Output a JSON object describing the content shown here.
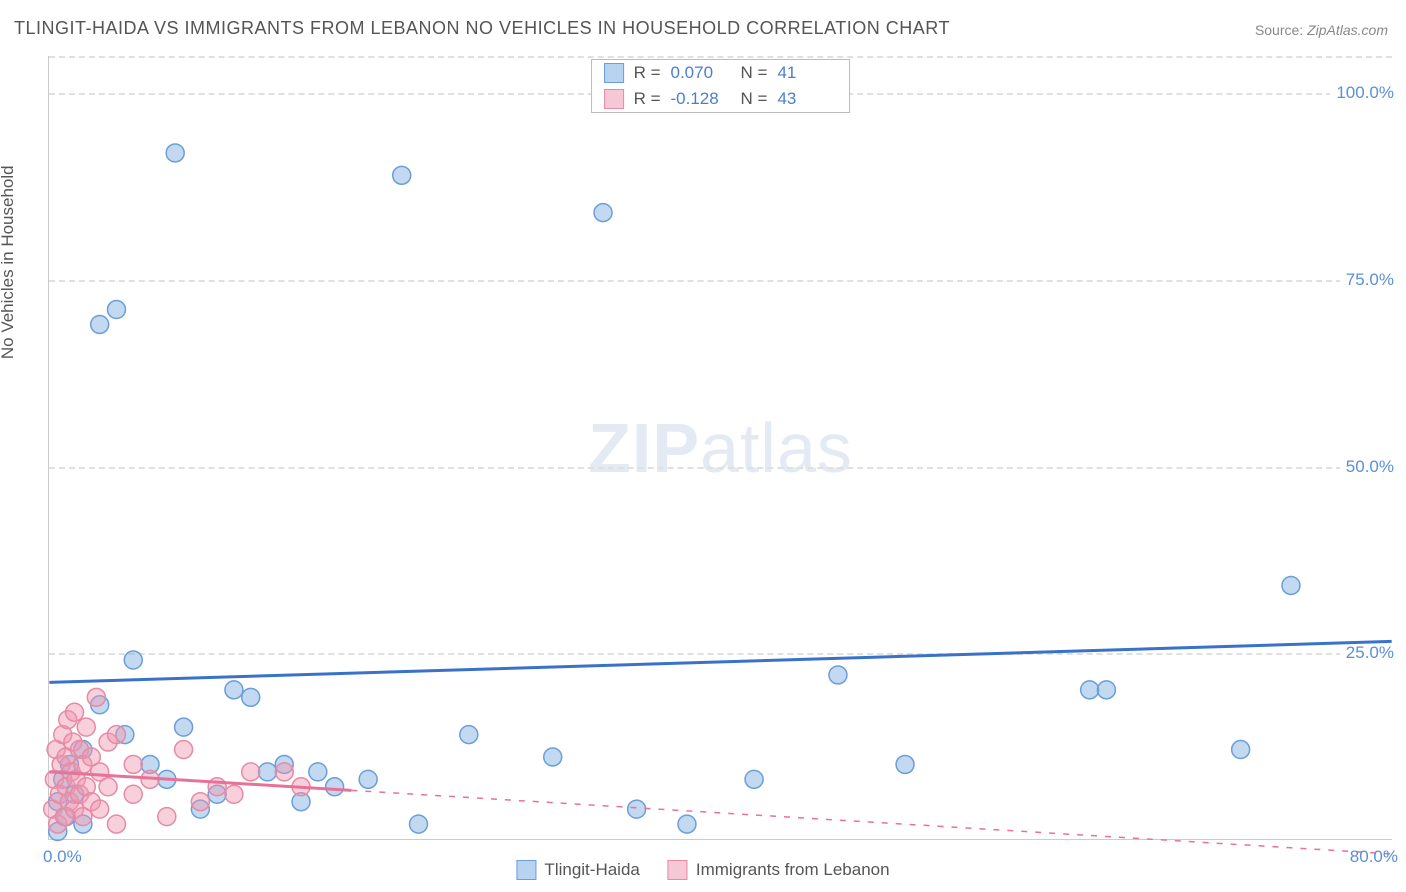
{
  "title": "TLINGIT-HAIDA VS IMMIGRANTS FROM LEBANON NO VEHICLES IN HOUSEHOLD CORRELATION CHART",
  "source_label": "Source:",
  "source_name": "ZipAtlas.com",
  "ylabel": "No Vehicles in Household",
  "watermark_bold": "ZIP",
  "watermark_light": "atlas",
  "chart": {
    "type": "scatter",
    "xlim": [
      0,
      80
    ],
    "ylim": [
      0,
      105
    ],
    "xtick_min": "0.0%",
    "xtick_max": "80.0%",
    "yticks": [
      {
        "v": 25,
        "label": "25.0%"
      },
      {
        "v": 50,
        "label": "50.0%"
      },
      {
        "v": 75,
        "label": "75.0%"
      },
      {
        "v": 100,
        "label": "100.0%"
      }
    ],
    "grid_color": "#e0e0e0",
    "background_color": "#ffffff",
    "axis_color": "#cccccc",
    "tick_color": "#5b8fd6",
    "title_color": "#555555",
    "marker_radius": 9,
    "series": [
      {
        "name": "Tlingit-Haida",
        "fill": "rgba(120,170,225,0.45)",
        "stroke": "#6a9fd8",
        "swatch_fill": "#b7d3f0",
        "swatch_border": "#6a9fd8",
        "R": "0.070",
        "N": "41",
        "trend": {
          "y1": 21,
          "y2": 26.5,
          "x_solid_end": 80,
          "color": "#3a72c9",
          "width": 3
        },
        "points": [
          [
            0.5,
            1
          ],
          [
            0.5,
            5
          ],
          [
            0.8,
            8
          ],
          [
            1,
            3
          ],
          [
            1.2,
            10
          ],
          [
            1.5,
            6
          ],
          [
            2,
            12
          ],
          [
            2,
            2
          ],
          [
            3,
            18
          ],
          [
            3,
            69
          ],
          [
            4,
            71
          ],
          [
            4.5,
            14
          ],
          [
            5,
            24
          ],
          [
            6,
            10
          ],
          [
            7,
            8
          ],
          [
            7.5,
            92
          ],
          [
            8,
            15
          ],
          [
            9,
            4
          ],
          [
            10,
            6
          ],
          [
            11,
            20
          ],
          [
            12,
            19
          ],
          [
            13,
            9
          ],
          [
            14,
            10
          ],
          [
            15,
            5
          ],
          [
            16,
            9
          ],
          [
            17,
            7
          ],
          [
            19,
            8
          ],
          [
            21,
            89
          ],
          [
            22,
            2
          ],
          [
            25,
            14
          ],
          [
            30,
            11
          ],
          [
            33,
            84
          ],
          [
            35,
            4
          ],
          [
            38,
            2
          ],
          [
            42,
            8
          ],
          [
            47,
            22
          ],
          [
            51,
            10
          ],
          [
            62,
            20
          ],
          [
            63,
            20
          ],
          [
            71,
            12
          ],
          [
            74,
            34
          ]
        ]
      },
      {
        "name": "Immigrants from Lebanon",
        "fill": "rgba(240,150,175,0.45)",
        "stroke": "#e68aa5",
        "swatch_fill": "#f6c7d4",
        "swatch_border": "#e68aa5",
        "R": "-0.128",
        "N": "43",
        "trend": {
          "y1": 9,
          "y2": -2,
          "x_solid_end": 18,
          "color": "#e77299",
          "width": 3
        },
        "points": [
          [
            0.2,
            4
          ],
          [
            0.3,
            8
          ],
          [
            0.4,
            12
          ],
          [
            0.5,
            2
          ],
          [
            0.6,
            6
          ],
          [
            0.7,
            10
          ],
          [
            0.8,
            14
          ],
          [
            0.9,
            3
          ],
          [
            1,
            7
          ],
          [
            1,
            11
          ],
          [
            1.1,
            16
          ],
          [
            1.2,
            5
          ],
          [
            1.3,
            9
          ],
          [
            1.4,
            13
          ],
          [
            1.5,
            4
          ],
          [
            1.5,
            17
          ],
          [
            1.6,
            8
          ],
          [
            1.8,
            6
          ],
          [
            1.8,
            12
          ],
          [
            2,
            3
          ],
          [
            2,
            10
          ],
          [
            2.2,
            7
          ],
          [
            2.2,
            15
          ],
          [
            2.5,
            5
          ],
          [
            2.5,
            11
          ],
          [
            2.8,
            19
          ],
          [
            3,
            4
          ],
          [
            3,
            9
          ],
          [
            3.5,
            7
          ],
          [
            3.5,
            13
          ],
          [
            4,
            14
          ],
          [
            4,
            2
          ],
          [
            5,
            6
          ],
          [
            5,
            10
          ],
          [
            6,
            8
          ],
          [
            7,
            3
          ],
          [
            8,
            12
          ],
          [
            9,
            5
          ],
          [
            10,
            7
          ],
          [
            11,
            6
          ],
          [
            12,
            9
          ],
          [
            14,
            9
          ],
          [
            15,
            7
          ]
        ]
      }
    ]
  }
}
